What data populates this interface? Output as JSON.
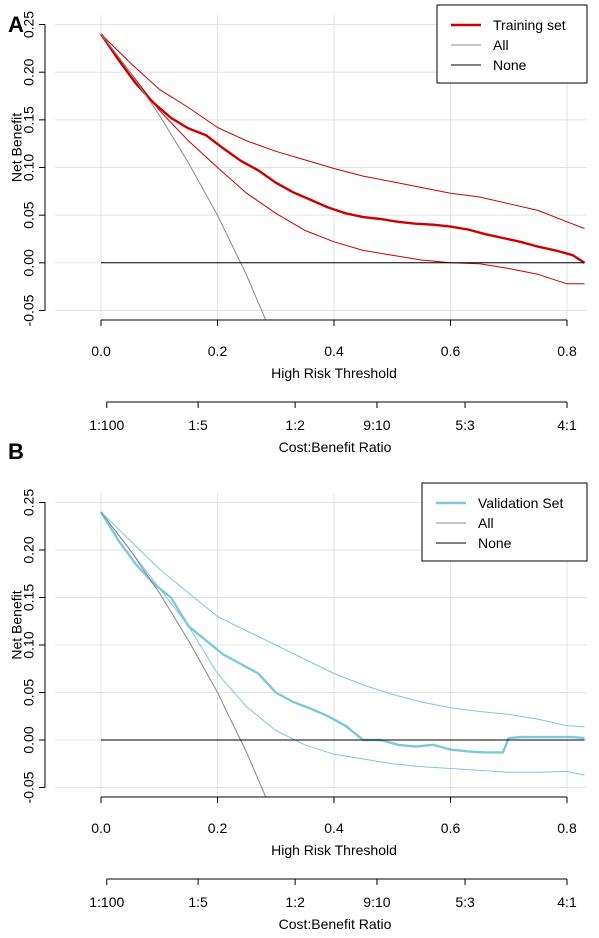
{
  "chart_data": [
    {
      "panel_label": "A",
      "type": "line",
      "xlabel": "High Risk Threshold",
      "ylabel": "Net Benefit",
      "xlim": [
        0,
        0.83
      ],
      "ylim": [
        -0.06,
        0.26
      ],
      "x_ticks": [
        "0.0",
        "0.2",
        "0.4",
        "0.6",
        "0.8"
      ],
      "x_tick_values": [
        0,
        0.2,
        0.4,
        0.6,
        0.8
      ],
      "y_ticks": [
        "-0.05",
        "0.00",
        "0.05",
        "0.10",
        "0.15",
        "0.20",
        "0.25"
      ],
      "y_tick_values": [
        -0.05,
        0,
        0.05,
        0.1,
        0.15,
        0.2,
        0.25
      ],
      "grid": true,
      "legend_position": "top-right",
      "secondary_axis": {
        "label": "Cost:Benefit Ratio",
        "ticks": [
          "1:100",
          "1:5",
          "1:2",
          "9:10",
          "5:3",
          "4:1"
        ],
        "tick_values": [
          0.0099,
          0.1667,
          0.3333,
          0.4737,
          0.625,
          0.8
        ]
      },
      "series": [
        {
          "name": "Training set",
          "role": "model",
          "color": "#cc0000",
          "x": [
            0,
            0.03,
            0.06,
            0.09,
            0.12,
            0.15,
            0.18,
            0.21,
            0.24,
            0.27,
            0.3,
            0.33,
            0.36,
            0.39,
            0.42,
            0.45,
            0.48,
            0.51,
            0.54,
            0.57,
            0.6,
            0.63,
            0.66,
            0.69,
            0.72,
            0.75,
            0.78,
            0.81,
            0.83
          ],
          "y": [
            0.24,
            0.213,
            0.188,
            0.168,
            0.152,
            0.141,
            0.134,
            0.12,
            0.107,
            0.097,
            0.084,
            0.074,
            0.066,
            0.058,
            0.052,
            0.048,
            0.046,
            0.043,
            0.041,
            0.04,
            0.038,
            0.035,
            0.03,
            0.026,
            0.022,
            0.017,
            0.013,
            0.008,
            0.0
          ]
        },
        {
          "role": "upper-ci",
          "color": "#cc0000",
          "x": [
            0,
            0.05,
            0.1,
            0.15,
            0.2,
            0.25,
            0.3,
            0.35,
            0.4,
            0.45,
            0.5,
            0.55,
            0.6,
            0.65,
            0.7,
            0.75,
            0.8,
            0.83
          ],
          "y": [
            0.24,
            0.21,
            0.182,
            0.163,
            0.142,
            0.128,
            0.117,
            0.108,
            0.099,
            0.091,
            0.085,
            0.079,
            0.073,
            0.069,
            0.062,
            0.055,
            0.043,
            0.036
          ]
        },
        {
          "role": "lower-ci",
          "color": "#cc0000",
          "x": [
            0,
            0.05,
            0.1,
            0.15,
            0.2,
            0.25,
            0.3,
            0.35,
            0.4,
            0.45,
            0.5,
            0.55,
            0.6,
            0.65,
            0.7,
            0.75,
            0.8,
            0.83
          ],
          "y": [
            0.24,
            0.2,
            0.16,
            0.128,
            0.1,
            0.073,
            0.052,
            0.034,
            0.022,
            0.013,
            0.008,
            0.003,
            0.0,
            -0.001,
            -0.006,
            -0.012,
            -0.022,
            -0.022
          ]
        },
        {
          "name": "All",
          "role": "treat-all",
          "color": "#888888",
          "x": [
            0,
            0.05,
            0.1,
            0.15,
            0.2,
            0.25,
            0.285
          ],
          "y": [
            0.24,
            0.2,
            0.155,
            0.105,
            0.05,
            -0.013,
            -0.063
          ]
        },
        {
          "name": "None",
          "role": "treat-none",
          "color": "#000000",
          "x": [
            0,
            0.83
          ],
          "y": [
            0,
            0
          ]
        }
      ]
    },
    {
      "panel_label": "B",
      "type": "line",
      "xlabel": "High Risk Threshold",
      "ylabel": "Net Benefit",
      "xlim": [
        0,
        0.83
      ],
      "ylim": [
        -0.06,
        0.26
      ],
      "x_ticks": [
        "0.0",
        "0.2",
        "0.4",
        "0.6",
        "0.8"
      ],
      "x_tick_values": [
        0,
        0.2,
        0.4,
        0.6,
        0.8
      ],
      "y_ticks": [
        "-0.05",
        "0.00",
        "0.05",
        "0.10",
        "0.15",
        "0.20",
        "0.25"
      ],
      "y_tick_values": [
        -0.05,
        0,
        0.05,
        0.1,
        0.15,
        0.2,
        0.25
      ],
      "grid": true,
      "legend_position": "top-right",
      "secondary_axis": {
        "label": "Cost:Benefit Ratio",
        "ticks": [
          "1:100",
          "1:5",
          "1:2",
          "9:10",
          "5:3",
          "4:1"
        ],
        "tick_values": [
          0.0099,
          0.1667,
          0.3333,
          0.4737,
          0.625,
          0.8
        ]
      },
      "series": [
        {
          "name": "Validation Set",
          "role": "model",
          "color": "#7ec8dc",
          "x": [
            0,
            0.03,
            0.06,
            0.09,
            0.12,
            0.15,
            0.18,
            0.21,
            0.24,
            0.27,
            0.3,
            0.33,
            0.36,
            0.39,
            0.42,
            0.45,
            0.48,
            0.51,
            0.54,
            0.57,
            0.6,
            0.63,
            0.66,
            0.69,
            0.7,
            0.72,
            0.75,
            0.78,
            0.81,
            0.83
          ],
          "y": [
            0.24,
            0.21,
            0.185,
            0.165,
            0.15,
            0.12,
            0.105,
            0.09,
            0.08,
            0.07,
            0.05,
            0.04,
            0.033,
            0.025,
            0.015,
            0.0,
            0.0,
            -0.005,
            -0.007,
            -0.005,
            -0.01,
            -0.012,
            -0.013,
            -0.013,
            0.002,
            0.003,
            0.003,
            0.003,
            0.003,
            0.002
          ]
        },
        {
          "role": "upper-ci",
          "color": "#7ec8dc",
          "x": [
            0,
            0.05,
            0.1,
            0.15,
            0.2,
            0.25,
            0.3,
            0.35,
            0.4,
            0.45,
            0.5,
            0.55,
            0.6,
            0.65,
            0.7,
            0.75,
            0.8,
            0.83
          ],
          "y": [
            0.24,
            0.21,
            0.18,
            0.155,
            0.13,
            0.115,
            0.1,
            0.085,
            0.07,
            0.058,
            0.048,
            0.04,
            0.034,
            0.03,
            0.027,
            0.022,
            0.015,
            0.014
          ]
        },
        {
          "role": "lower-ci",
          "color": "#7ec8dc",
          "x": [
            0,
            0.05,
            0.1,
            0.15,
            0.2,
            0.25,
            0.3,
            0.35,
            0.4,
            0.45,
            0.5,
            0.55,
            0.6,
            0.65,
            0.7,
            0.75,
            0.8,
            0.83
          ],
          "y": [
            0.24,
            0.2,
            0.16,
            0.12,
            0.07,
            0.035,
            0.01,
            -0.005,
            -0.015,
            -0.02,
            -0.025,
            -0.028,
            -0.03,
            -0.032,
            -0.034,
            -0.034,
            -0.033,
            -0.037
          ]
        },
        {
          "name": "All",
          "role": "treat-all",
          "color": "#888888",
          "x": [
            0,
            0.05,
            0.1,
            0.15,
            0.2,
            0.25,
            0.285
          ],
          "y": [
            0.24,
            0.2,
            0.155,
            0.105,
            0.05,
            -0.013,
            -0.063
          ]
        },
        {
          "name": "None",
          "role": "treat-none",
          "color": "#000000",
          "x": [
            0,
            0.83
          ],
          "y": [
            0,
            0
          ]
        }
      ]
    }
  ]
}
